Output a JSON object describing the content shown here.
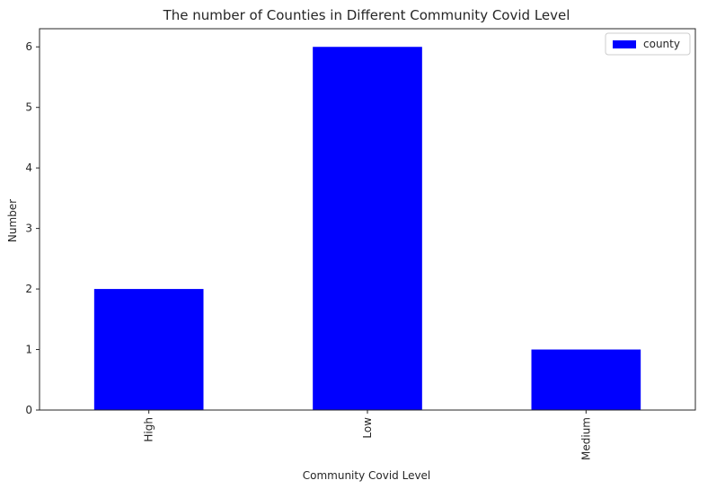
{
  "chart_data": {
    "type": "bar",
    "title": "The number of Counties in Different Community Covid Level",
    "xlabel": "Community Covid Level",
    "ylabel": "Number",
    "categories": [
      "High",
      "Low",
      "Medium"
    ],
    "series": [
      {
        "name": "county",
        "values": [
          2,
          6,
          1
        ],
        "color": "#0000ff"
      }
    ],
    "ylim": [
      0,
      6.3
    ],
    "yticks": [
      0,
      1,
      2,
      3,
      4,
      5,
      6
    ],
    "x_tick_rotation": "vertical",
    "legend": "top-right",
    "grid": false
  }
}
